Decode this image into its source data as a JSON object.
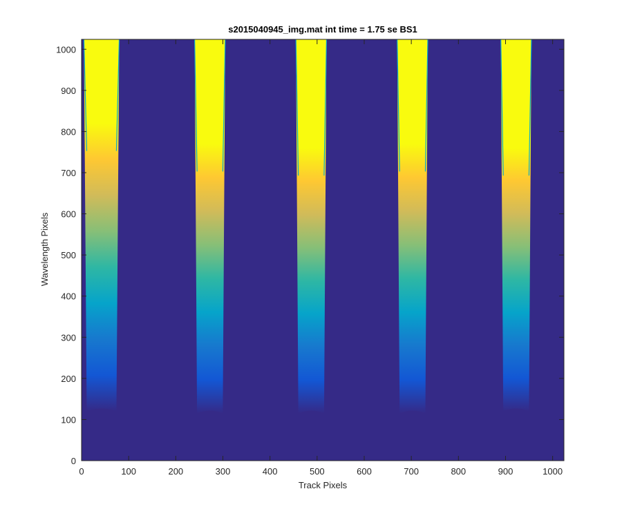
{
  "chart_data": {
    "type": "heatmap",
    "title": "s2015040945_img.mat int time = 1.75 se   BS1",
    "xlabel": "Track Pixels",
    "ylabel": "Wavelength Pixels",
    "xlim": [
      0,
      1024
    ],
    "ylim": [
      0,
      1024
    ],
    "xticks": [
      0,
      100,
      200,
      300,
      400,
      500,
      600,
      700,
      800,
      900,
      1000
    ],
    "yticks": [
      0,
      100,
      200,
      300,
      400,
      500,
      600,
      700,
      800,
      900,
      1000
    ],
    "colormap": "parula",
    "colors": {
      "background": "#352a87",
      "saturated": "#f9fb0e",
      "colormap_stops": [
        "#352a87",
        "#0f5cdd",
        "#1481d6",
        "#06a4ca",
        "#2eb7a4",
        "#87bf77",
        "#d1bb59",
        "#fec832",
        "#f9fb0e"
      ]
    },
    "bands": [
      {
        "x_start": 5,
        "x_end": 80,
        "signal_bottom": 120,
        "saturation_start": 820
      },
      {
        "x_start": 240,
        "x_end": 305,
        "signal_bottom": 115,
        "saturation_start": 770
      },
      {
        "x_start": 455,
        "x_end": 520,
        "signal_bottom": 115,
        "saturation_start": 760
      },
      {
        "x_start": 670,
        "x_end": 735,
        "signal_bottom": 115,
        "saturation_start": 770
      },
      {
        "x_start": 890,
        "x_end": 955,
        "signal_bottom": 120,
        "saturation_start": 760
      }
    ]
  }
}
